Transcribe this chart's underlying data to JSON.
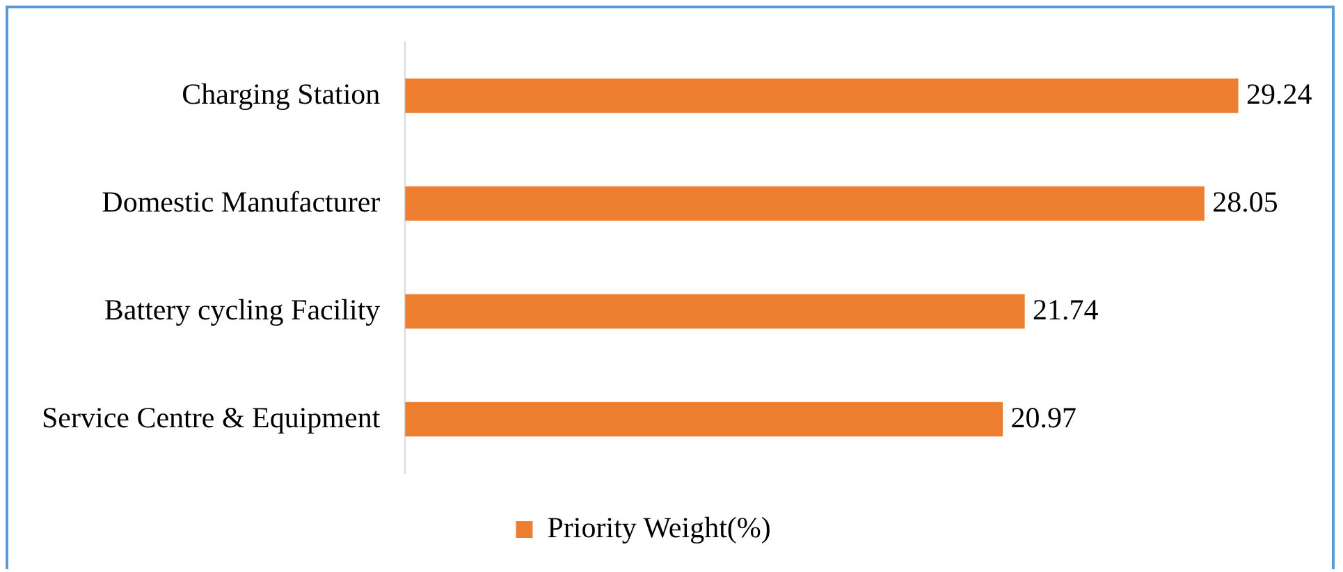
{
  "chart_data": {
    "type": "bar",
    "orientation": "horizontal",
    "categories": [
      "Charging Station",
      "Domestic Manufacturer",
      "Battery cycling Facility",
      "Service Centre & Equipment"
    ],
    "series": [
      {
        "name": "Priority Weight(%)",
        "color": "#ed7d31",
        "values": [
          29.24,
          28.05,
          21.74,
          20.97
        ]
      }
    ],
    "data_labels": true,
    "legend": "bottom"
  }
}
